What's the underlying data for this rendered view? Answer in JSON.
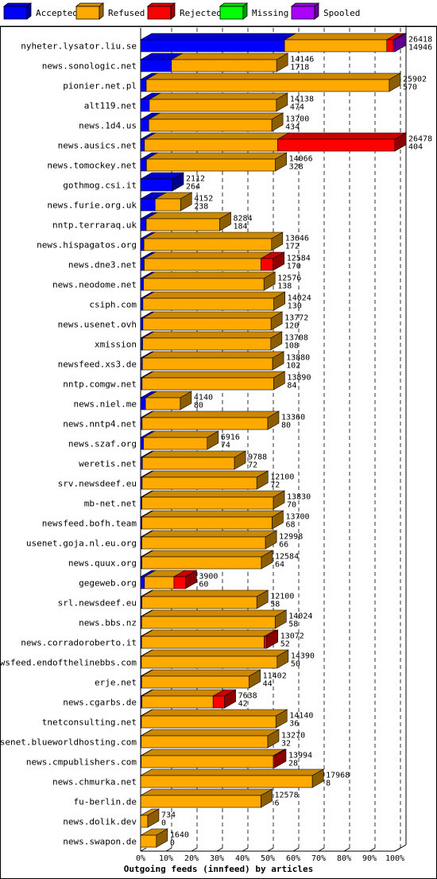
{
  "chart_data": {
    "type": "bar",
    "title": "",
    "xlabel": "Outgoing feeds (innfeed) by articles",
    "ylabel": "",
    "xlim": [
      0,
      100
    ],
    "x_ticks": [
      "0%",
      "10%",
      "20%",
      "30%",
      "40%",
      "50%",
      "60%",
      "70%",
      "80%",
      "90%",
      "100%"
    ],
    "legend_placement": "top",
    "legend": [
      {
        "name": "Accepted",
        "color": "#0000ff"
      },
      {
        "name": "Refused",
        "color": "#ffaa00"
      },
      {
        "name": "Rejected",
        "color": "#ff0000"
      },
      {
        "name": "Missing",
        "color": "#00ff00"
      },
      {
        "name": "Spooled",
        "color": "#aa00ff"
      }
    ],
    "grid": true,
    "categories": [
      "nyheter.lysator.liu.se",
      "news.sonologic.net",
      "pionier.net.pl",
      "alt119.net",
      "news.1d4.us",
      "news.ausics.net",
      "news.tomockey.net",
      "gothmog.csi.it",
      "news.furie.org.uk",
      "nntp.terraraq.uk",
      "news.hispagatos.org",
      "news.dne3.net",
      "news.neodome.net",
      "csiph.com",
      "news.usenet.ovh",
      "xmission",
      "newsfeed.xs3.de",
      "nntp.comgw.net",
      "news.niel.me",
      "news.nntp4.net",
      "news.szaf.org",
      "weretis.net",
      "srv.newsdeef.eu",
      "mb-net.net",
      "newsfeed.bofh.team",
      "usenet.goja.nl.eu.org",
      "news.quux.org",
      "gegeweb.org",
      "srl.newsdeef.eu",
      "news.bbs.nz",
      "news.corradoroberto.it",
      "newsfeed.endofthelinebbs.com",
      "erje.net",
      "news.cgarbs.de",
      "tnetconsulting.net",
      "usenet.blueworldhosting.com",
      "news.cmpublishers.com",
      "news.chmurka.net",
      "fu-berlin.de",
      "news.dolik.dev",
      "news.swapon.de"
    ],
    "offered_labels": [
      "26418",
      "14146",
      "25902",
      "14138",
      "13700",
      "26478",
      "14066",
      "2112",
      "4152",
      "8284",
      "13646",
      "12584",
      "12576",
      "14024",
      "13772",
      "13708",
      "13880",
      "13890",
      "4140",
      "13360",
      "6916",
      "9788",
      "12100",
      "13830",
      "13700",
      "12998",
      "12584",
      "3900",
      "12100",
      "14024",
      "13072",
      "14390",
      "11402",
      "7638",
      "14140",
      "13270",
      "13994",
      "17968",
      "12578",
      "734",
      "1640"
    ],
    "accepted_labels": [
      "14946",
      "1718",
      "570",
      "474",
      "434",
      "404",
      "328",
      "264",
      "238",
      "184",
      "172",
      "170",
      "138",
      "130",
      "120",
      "108",
      "102",
      "84",
      "80",
      "80",
      "74",
      "72",
      "72",
      "70",
      "68",
      "66",
      "64",
      "60",
      "58",
      "58",
      "52",
      "50",
      "44",
      "42",
      "36",
      "32",
      "28",
      "8",
      "6",
      "0",
      "0"
    ],
    "series": [
      {
        "name": "Accepted",
        "values": [
          56.6,
          12.1,
          2.2,
          3.4,
          3.2,
          1.5,
          2.3,
          12.5,
          5.7,
          2.2,
          1.3,
          1.4,
          1.1,
          0.9,
          0.9,
          0.8,
          0.7,
          0.6,
          1.9,
          0.6,
          1.1,
          0.7,
          0.6,
          0.5,
          0.5,
          0.5,
          0.5,
          1.5,
          0.5,
          0.4,
          0.4,
          0.3,
          0.4,
          0.5,
          0.3,
          0.2,
          0.2,
          0.04,
          0.05,
          0,
          0
        ]
      },
      {
        "name": "Refused",
        "values": [
          40.2,
          41.4,
          95.6,
          50.0,
          48.4,
          52.4,
          50.7,
          0.0,
          10.0,
          28.9,
          50.2,
          45.9,
          47.4,
          51.5,
          50.4,
          50.4,
          51.2,
          51.7,
          13.7,
          49.4,
          25.1,
          36.2,
          45.1,
          51.7,
          51.2,
          48.6,
          47.0,
          11.6,
          45.2,
          52.5,
          48.2,
          53.4,
          42.3,
          28.0,
          52.9,
          49.8,
          52.0,
          67.5,
          47.3,
          2.8,
          6.2
        ]
      },
      {
        "name": "Rejected",
        "values": [
          2.6,
          0,
          0,
          0,
          0,
          46.1,
          0,
          0,
          0,
          0,
          0,
          4.8,
          0,
          0,
          0,
          0,
          0,
          0,
          0,
          0,
          0,
          0,
          0,
          0,
          0,
          0,
          0,
          4.5,
          0,
          0,
          1.0,
          0,
          0,
          4.5,
          0,
          0,
          0.6,
          0,
          0,
          0,
          0
        ]
      },
      {
        "name": "Missing",
        "values": [
          0,
          0,
          0,
          0,
          0,
          0,
          0,
          0,
          0,
          0,
          0,
          0,
          0,
          0,
          0,
          0,
          0,
          0,
          0,
          0,
          0,
          0,
          0,
          0,
          0,
          0,
          0,
          0,
          0,
          0,
          0,
          0,
          0,
          0,
          0,
          0,
          0,
          0,
          0,
          0,
          0
        ]
      },
      {
        "name": "Spooled",
        "values": [
          0.6,
          0,
          0,
          0,
          0,
          0,
          0,
          0,
          0,
          0,
          0,
          0,
          0,
          0,
          0,
          0,
          0,
          0,
          0,
          0,
          0,
          0,
          0,
          0,
          0,
          0,
          0,
          0,
          0,
          0,
          0,
          0,
          0,
          0,
          0,
          0,
          0,
          0,
          0,
          0,
          0
        ]
      }
    ]
  }
}
